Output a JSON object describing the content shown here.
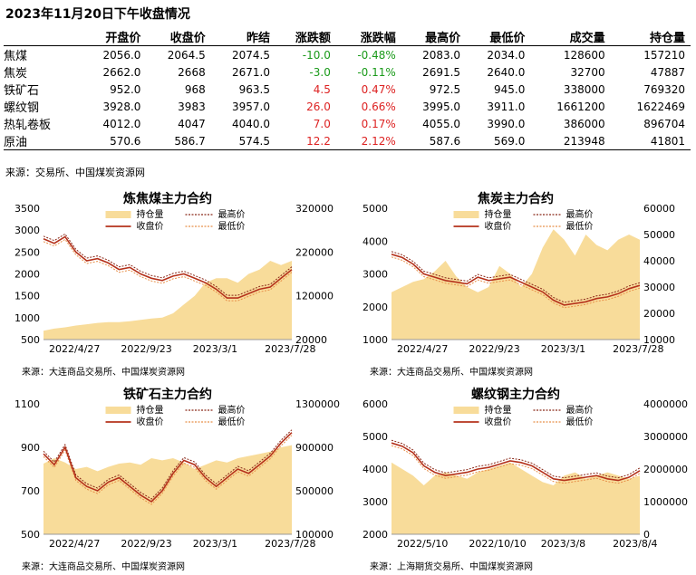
{
  "title": "2023年11月20日下午收盘情况",
  "table": {
    "headers": [
      "",
      "开盘价",
      "收盘价",
      "昨结",
      "涨跌额",
      "涨跌幅",
      "最高价",
      "最低价",
      "成交量",
      "持仓量"
    ],
    "rows": [
      {
        "name": "焦煤",
        "open": "2056.0",
        "close": "2064.5",
        "prev": "2074.5",
        "chg": "-10.0",
        "pct": "-0.48%",
        "high": "2083.0",
        "low": "2034.0",
        "vol": "128600",
        "oi": "157210",
        "dir": "down"
      },
      {
        "name": "焦炭",
        "open": "2662.0",
        "close": "2668",
        "prev": "2671.0",
        "chg": "-3.0",
        "pct": "-0.11%",
        "high": "2691.5",
        "low": "2640.0",
        "vol": "32700",
        "oi": "47887",
        "dir": "down"
      },
      {
        "name": "铁矿石",
        "open": "952.0",
        "close": "968",
        "prev": "963.5",
        "chg": "4.5",
        "pct": "0.47%",
        "high": "972.5",
        "low": "945.0",
        "vol": "338000",
        "oi": "769320",
        "dir": "up"
      },
      {
        "name": "螺纹钢",
        "open": "3928.0",
        "close": "3983",
        "prev": "3957.0",
        "chg": "26.0",
        "pct": "0.66%",
        "high": "3995.0",
        "low": "3911.0",
        "vol": "1661200",
        "oi": "1622469",
        "dir": "up"
      },
      {
        "name": "热轧卷板",
        "open": "4012.0",
        "close": "4047",
        "prev": "4040.0",
        "chg": "7.0",
        "pct": "0.17%",
        "high": "4055.0",
        "low": "3990.0",
        "vol": "386000",
        "oi": "896704",
        "dir": "up"
      },
      {
        "name": "原油",
        "open": "570.6",
        "close": "586.7",
        "prev": "574.5",
        "chg": "12.2",
        "pct": "2.12%",
        "high": "587.6",
        "low": "569.0",
        "vol": "213948",
        "oi": "41801",
        "dir": "up"
      }
    ]
  },
  "source_main": "来源：交易所、中国煤炭资源网",
  "colors": {
    "oi_fill": "#f8dc9a",
    "close_line": "#b5321c",
    "high_line": "#8b2a1a",
    "low_line": "#e8904a",
    "up": "#d22222",
    "down": "#1a9a1a"
  },
  "legend_labels": {
    "oi": "持仓量",
    "high": "最高价",
    "close": "收盘价",
    "low": "最低价"
  },
  "chart_data": [
    {
      "type": "line",
      "title": "炼焦煤主力合约",
      "x_ticks": [
        "2022/4/27",
        "2022/9/23",
        "2023/3/1",
        "2023/7/28"
      ],
      "left_ylim": [
        500,
        3500
      ],
      "left_ticks": [
        "3500",
        "3000",
        "2500",
        "2000",
        "1500",
        "1000",
        "500"
      ],
      "right_ylim": [
        20000,
        320000
      ],
      "right_ticks": [
        "320000",
        "220000",
        "120000",
        "20000"
      ],
      "source": "来源：大连商品交易所、中国煤炭资源网",
      "series": [
        {
          "name": "收盘价",
          "axis": "left",
          "values": [
            2800,
            2700,
            2850,
            2500,
            2300,
            2350,
            2250,
            2100,
            2150,
            2000,
            1900,
            1850,
            1950,
            2000,
            1900,
            1800,
            1650,
            1450,
            1450,
            1550,
            1650,
            1700,
            1900,
            2100
          ]
        },
        {
          "name": "持仓量",
          "axis": "right",
          "values": [
            40000,
            45000,
            48000,
            52000,
            55000,
            58000,
            60000,
            60000,
            62000,
            65000,
            68000,
            70000,
            80000,
            100000,
            120000,
            150000,
            160000,
            160000,
            150000,
            170000,
            180000,
            200000,
            190000,
            200000
          ]
        }
      ]
    },
    {
      "type": "line",
      "title": "焦炭主力合约",
      "x_ticks": [
        "2022/4/27",
        "2022/9/23",
        "2023/3/1",
        "2023/7/28"
      ],
      "left_ylim": [
        1000,
        5000
      ],
      "left_ticks": [
        "5000",
        "4000",
        "3000",
        "2000",
        "1000"
      ],
      "right_ylim": [
        10000,
        60000
      ],
      "right_ticks": [
        "60000",
        "50000",
        "40000",
        "30000",
        "20000",
        "10000"
      ],
      "source": "来源：大连商品交易所、中国煤炭资源网",
      "series": [
        {
          "name": "收盘价",
          "axis": "left",
          "values": [
            3600,
            3500,
            3300,
            3000,
            2900,
            2800,
            2750,
            2700,
            2900,
            2800,
            2850,
            2900,
            2750,
            2600,
            2450,
            2200,
            2050,
            2100,
            2150,
            2250,
            2300,
            2400,
            2550,
            2650
          ]
        },
        {
          "name": "持仓量",
          "axis": "right",
          "values": [
            28000,
            30000,
            32000,
            33000,
            36000,
            40000,
            34000,
            30000,
            28000,
            30000,
            38000,
            35000,
            30000,
            35000,
            45000,
            52000,
            48000,
            42000,
            50000,
            46000,
            44000,
            48000,
            50000,
            48000
          ]
        }
      ]
    },
    {
      "type": "line",
      "title": "铁矿石主力合约",
      "x_ticks": [
        "2022/4/27",
        "2022/9/23",
        "2023/3/1",
        "2023/7/28"
      ],
      "left_ylim": [
        500,
        1100
      ],
      "left_ticks": [
        "1100",
        "900",
        "700",
        "500"
      ],
      "right_ylim": [
        100000,
        1300000
      ],
      "right_ticks": [
        "1300000",
        "900000",
        "500000",
        "100000"
      ],
      "source": "来源：大连商品交易所、中国煤炭资源网",
      "series": [
        {
          "name": "收盘价",
          "axis": "left",
          "values": [
            870,
            820,
            900,
            760,
            720,
            700,
            740,
            760,
            720,
            680,
            650,
            700,
            780,
            840,
            820,
            760,
            720,
            760,
            800,
            780,
            820,
            860,
            920,
            968
          ]
        },
        {
          "name": "持仓量",
          "axis": "right",
          "values": [
            750000,
            800000,
            760000,
            700000,
            720000,
            680000,
            720000,
            750000,
            760000,
            740000,
            800000,
            780000,
            800000,
            760000,
            700000,
            740000,
            780000,
            760000,
            800000,
            820000,
            840000,
            860000,
            900000,
            920000
          ]
        }
      ]
    },
    {
      "type": "line",
      "title": "螺纹钢主力合约",
      "x_ticks": [
        "2022/5/10",
        "2022/10/10",
        "2023/3/8",
        "2023/8/4"
      ],
      "left_ylim": [
        2000,
        6000
      ],
      "left_ticks": [
        "6000",
        "5000",
        "4000",
        "3000",
        "2000"
      ],
      "right_ylim": [
        0,
        4000000
      ],
      "right_ticks": [
        "4000000",
        "3000000",
        "2000000",
        "1000000",
        "0"
      ],
      "source": "来源：上海期货交易所、中国煤炭资源网",
      "series": [
        {
          "name": "收盘价",
          "axis": "left",
          "values": [
            4800,
            4700,
            4500,
            4100,
            3900,
            3800,
            3850,
            3900,
            4000,
            4050,
            4150,
            4250,
            4200,
            4100,
            3900,
            3700,
            3650,
            3700,
            3750,
            3800,
            3700,
            3650,
            3750,
            3950
          ]
        },
        {
          "name": "持仓量",
          "axis": "right",
          "values": [
            2200000,
            2000000,
            1800000,
            1500000,
            1800000,
            1900000,
            1800000,
            1700000,
            1900000,
            2000000,
            2100000,
            2200000,
            2000000,
            1800000,
            1600000,
            1500000,
            1800000,
            1900000,
            1700000,
            1800000,
            1900000,
            1800000,
            1700000,
            1800000
          ]
        }
      ]
    }
  ]
}
